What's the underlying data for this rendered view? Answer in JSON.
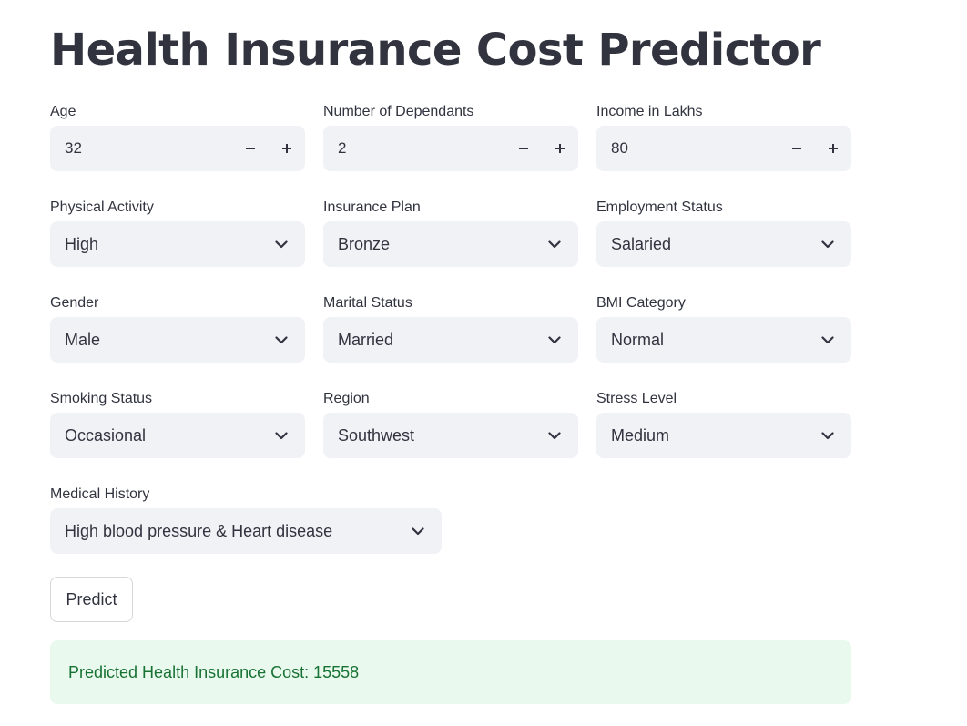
{
  "page": {
    "title": "Health Insurance Cost Predictor"
  },
  "inputs": {
    "age": {
      "label": "Age",
      "value": "32"
    },
    "dependants": {
      "label": "Number of Dependants",
      "value": "2"
    },
    "income": {
      "label": "Income in Lakhs",
      "value": "80"
    }
  },
  "selects": {
    "physical_activity": {
      "label": "Physical Activity",
      "value": "High"
    },
    "insurance_plan": {
      "label": "Insurance Plan",
      "value": "Bronze"
    },
    "employment_status": {
      "label": "Employment Status",
      "value": "Salaried"
    },
    "gender": {
      "label": "Gender",
      "value": "Male"
    },
    "marital_status": {
      "label": "Marital Status",
      "value": "Married"
    },
    "bmi_category": {
      "label": "BMI Category",
      "value": "Normal"
    },
    "smoking_status": {
      "label": "Smoking Status",
      "value": "Occasional"
    },
    "region": {
      "label": "Region",
      "value": "Southwest"
    },
    "stress_level": {
      "label": "Stress Level",
      "value": "Medium"
    },
    "medical_history": {
      "label": "Medical History",
      "value": "High blood pressure & Heart disease"
    }
  },
  "actions": {
    "predict_label": "Predict"
  },
  "result": {
    "text": "Predicted Health Insurance Cost: 15558"
  },
  "icons": {
    "decrement": "minus-icon",
    "increment": "plus-icon",
    "dropdown": "chevron-down-icon"
  },
  "colors": {
    "input_background": "#f0f2f6",
    "text": "#31333f",
    "success_background": "#e9f9ee",
    "success_text": "#177233"
  }
}
